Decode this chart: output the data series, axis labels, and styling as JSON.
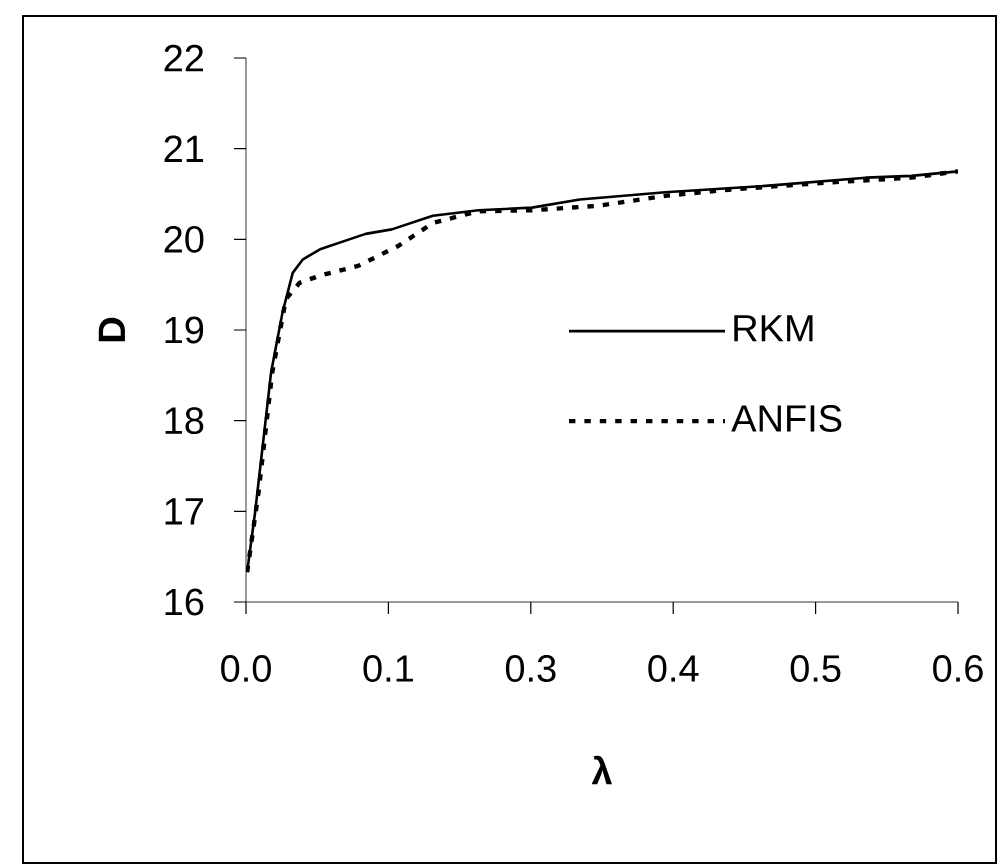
{
  "chart_data": {
    "type": "line",
    "xlabel": "λ",
    "ylabel": "D",
    "xlim": [
      0,
      0.625
    ],
    "ylim": [
      16,
      22
    ],
    "xticks": [
      {
        "value": 0,
        "label": "0.0"
      },
      {
        "value": 0.125,
        "label": "0.1"
      },
      {
        "value": 0.25,
        "label": "0.3"
      },
      {
        "value": 0.375,
        "label": "0.4"
      },
      {
        "value": 0.5,
        "label": "0.5"
      },
      {
        "value": 0.625,
        "label": "0.6"
      }
    ],
    "yticks": [
      16,
      17,
      18,
      19,
      20,
      21,
      22
    ],
    "grid": false,
    "legend": "right",
    "marker": "none",
    "series": [
      {
        "name": "RKM",
        "color": "#000000",
        "line_style": "solid",
        "x": [
          0.001,
          0.008,
          0.022,
          0.032,
          0.041,
          0.05,
          0.065,
          0.105,
          0.128,
          0.164,
          0.204,
          0.251,
          0.293,
          0.368,
          0.456,
          0.544,
          0.584,
          0.625
        ],
        "values": [
          16.33,
          16.99,
          18.53,
          19.19,
          19.63,
          19.78,
          19.89,
          20.06,
          20.11,
          20.26,
          20.32,
          20.35,
          20.44,
          20.52,
          20.59,
          20.68,
          20.7,
          20.75
        ]
      },
      {
        "name": "ANFIS",
        "color": "#000000",
        "line_style": "dashed",
        "x": [
          0.001,
          0.011,
          0.023,
          0.035,
          0.047,
          0.065,
          0.099,
          0.134,
          0.164,
          0.204,
          0.251,
          0.309,
          0.368,
          0.426,
          0.515,
          0.584,
          0.625
        ],
        "values": [
          16.33,
          17.21,
          18.53,
          19.34,
          19.52,
          19.6,
          19.71,
          19.93,
          20.18,
          20.31,
          20.32,
          20.37,
          20.48,
          20.55,
          20.63,
          20.68,
          20.75
        ]
      }
    ]
  }
}
